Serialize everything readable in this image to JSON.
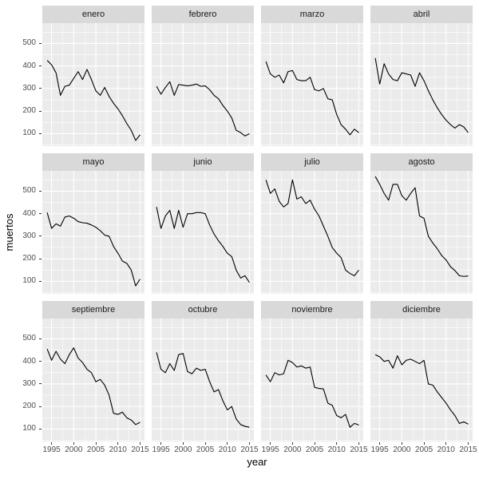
{
  "chart_data": {
    "type": "line",
    "title": "",
    "xlabel": "year",
    "ylabel": "muertos",
    "facet_layout": {
      "rows": 3,
      "cols": 4
    },
    "legend": "none",
    "grid": true,
    "x": [
      1994,
      1995,
      1996,
      1997,
      1998,
      1999,
      2000,
      2001,
      2002,
      2003,
      2004,
      2005,
      2006,
      2007,
      2008,
      2009,
      2010,
      2011,
      2012,
      2013,
      2014,
      2015
    ],
    "x_ticks": [
      1995,
      2000,
      2005,
      2010,
      2015
    ],
    "x_tick_labels": [
      "1995",
      "2000",
      "2005",
      "2010",
      "2015"
    ],
    "y_ticks": [
      100,
      200,
      300,
      400,
      500
    ],
    "y_tick_labels": [
      "100",
      "200",
      "300",
      "400",
      "500"
    ],
    "x_minor_ticks": [
      1997.5,
      2002.5,
      2007.5,
      2012.5
    ],
    "y_minor_ticks": [
      50,
      150,
      250,
      350,
      450,
      550
    ],
    "x_range": [
      1992.9,
      2016.0
    ],
    "y_range": [
      45,
      590
    ],
    "series": [
      {
        "name": "enero",
        "values": [
          425,
          405,
          370,
          270,
          310,
          315,
          345,
          375,
          340,
          385,
          340,
          290,
          270,
          305,
          265,
          235,
          210,
          180,
          145,
          115,
          70,
          95
        ]
      },
      {
        "name": "febrero",
        "values": [
          310,
          275,
          305,
          330,
          270,
          318,
          315,
          312,
          315,
          320,
          310,
          312,
          295,
          270,
          255,
          225,
          200,
          170,
          115,
          105,
          90,
          100
        ]
      },
      {
        "name": "marzo",
        "values": [
          420,
          365,
          350,
          360,
          325,
          375,
          380,
          340,
          335,
          335,
          350,
          295,
          290,
          300,
          255,
          250,
          185,
          140,
          120,
          95,
          120,
          105
        ]
      },
      {
        "name": "abril",
        "values": [
          435,
          320,
          410,
          365,
          340,
          335,
          370,
          365,
          360,
          310,
          370,
          335,
          290,
          250,
          215,
          185,
          160,
          140,
          125,
          140,
          130,
          105
        ]
      },
      {
        "name": "mayo",
        "values": [
          405,
          335,
          355,
          345,
          385,
          390,
          380,
          365,
          360,
          358,
          350,
          340,
          325,
          305,
          300,
          255,
          225,
          190,
          180,
          150,
          80,
          110
        ]
      },
      {
        "name": "junio",
        "values": [
          430,
          335,
          390,
          415,
          335,
          415,
          340,
          400,
          400,
          405,
          405,
          400,
          350,
          310,
          280,
          255,
          225,
          210,
          150,
          115,
          125,
          95
        ]
      },
      {
        "name": "julio",
        "values": [
          550,
          490,
          510,
          455,
          430,
          445,
          550,
          465,
          475,
          445,
          460,
          420,
          390,
          345,
          300,
          250,
          225,
          205,
          150,
          135,
          125,
          150
        ]
      },
      {
        "name": "agosto",
        "values": [
          565,
          530,
          490,
          460,
          530,
          530,
          480,
          460,
          490,
          515,
          390,
          380,
          300,
          270,
          245,
          215,
          195,
          165,
          148,
          125,
          122,
          124
        ]
      },
      {
        "name": "septiembre",
        "values": [
          455,
          405,
          445,
          410,
          390,
          430,
          460,
          415,
          395,
          365,
          350,
          310,
          320,
          295,
          250,
          170,
          165,
          175,
          150,
          140,
          120,
          130
        ]
      },
      {
        "name": "octubre",
        "values": [
          440,
          365,
          350,
          390,
          360,
          430,
          435,
          355,
          345,
          370,
          360,
          365,
          310,
          265,
          275,
          225,
          185,
          200,
          145,
          120,
          112,
          108
        ]
      },
      {
        "name": "noviembre",
        "values": [
          340,
          310,
          350,
          340,
          345,
          405,
          395,
          375,
          380,
          370,
          375,
          285,
          280,
          278,
          215,
          205,
          160,
          150,
          165,
          108,
          125,
          118
        ]
      },
      {
        "name": "diciembre",
        "values": [
          430,
          420,
          400,
          405,
          370,
          425,
          385,
          405,
          410,
          400,
          390,
          405,
          300,
          295,
          265,
          240,
          215,
          185,
          160,
          125,
          132,
          122
        ]
      }
    ],
    "colors": {
      "line": "#000000",
      "panel_bg": "#EBEBEB",
      "strip_bg": "#D9D9D9",
      "strip_text": "#1A1A1A",
      "grid": "#FFFFFF",
      "tick_text": "#4D4D4D",
      "tick_mark": "#333333",
      "axis_title": "#000000",
      "background": "#FFFFFF"
    }
  }
}
